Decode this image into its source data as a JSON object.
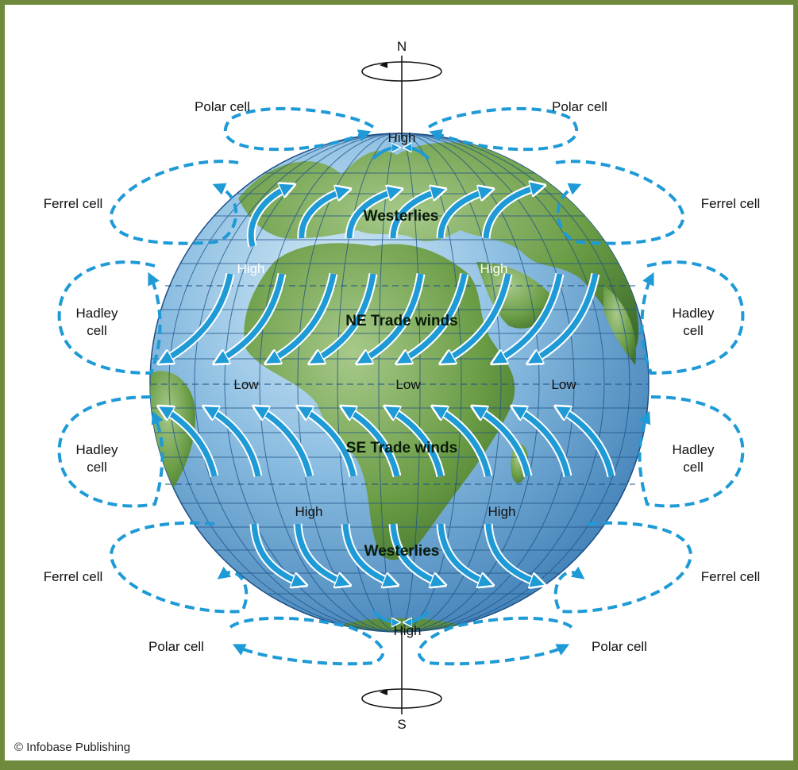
{
  "axis": {
    "north": "N",
    "south": "S"
  },
  "pressure": {
    "high_north_pole": "High",
    "high_south_pole": "High",
    "high_nw": "High",
    "high_ne": "High",
    "high_sw": "High",
    "high_se": "High",
    "low_w": "Low",
    "low_c": "Low",
    "low_e": "Low"
  },
  "winds": {
    "westerlies_north": "Westerlies",
    "ne_trades": "NE Trade winds",
    "se_trades": "SE Trade winds",
    "westerlies_south": "Westerlies"
  },
  "cells": {
    "polar": "Polar cell",
    "ferrel": "Ferrel cell",
    "hadley_line1": "Hadley",
    "hadley_line2": "cell"
  },
  "credit": "© Infobase Publishing",
  "colors": {
    "frame": "#6f8a3c",
    "ocean": "#6aa3cf",
    "land": "#6e9e48",
    "arrow": "#1e9ad6",
    "grid": "#1b4f86"
  }
}
